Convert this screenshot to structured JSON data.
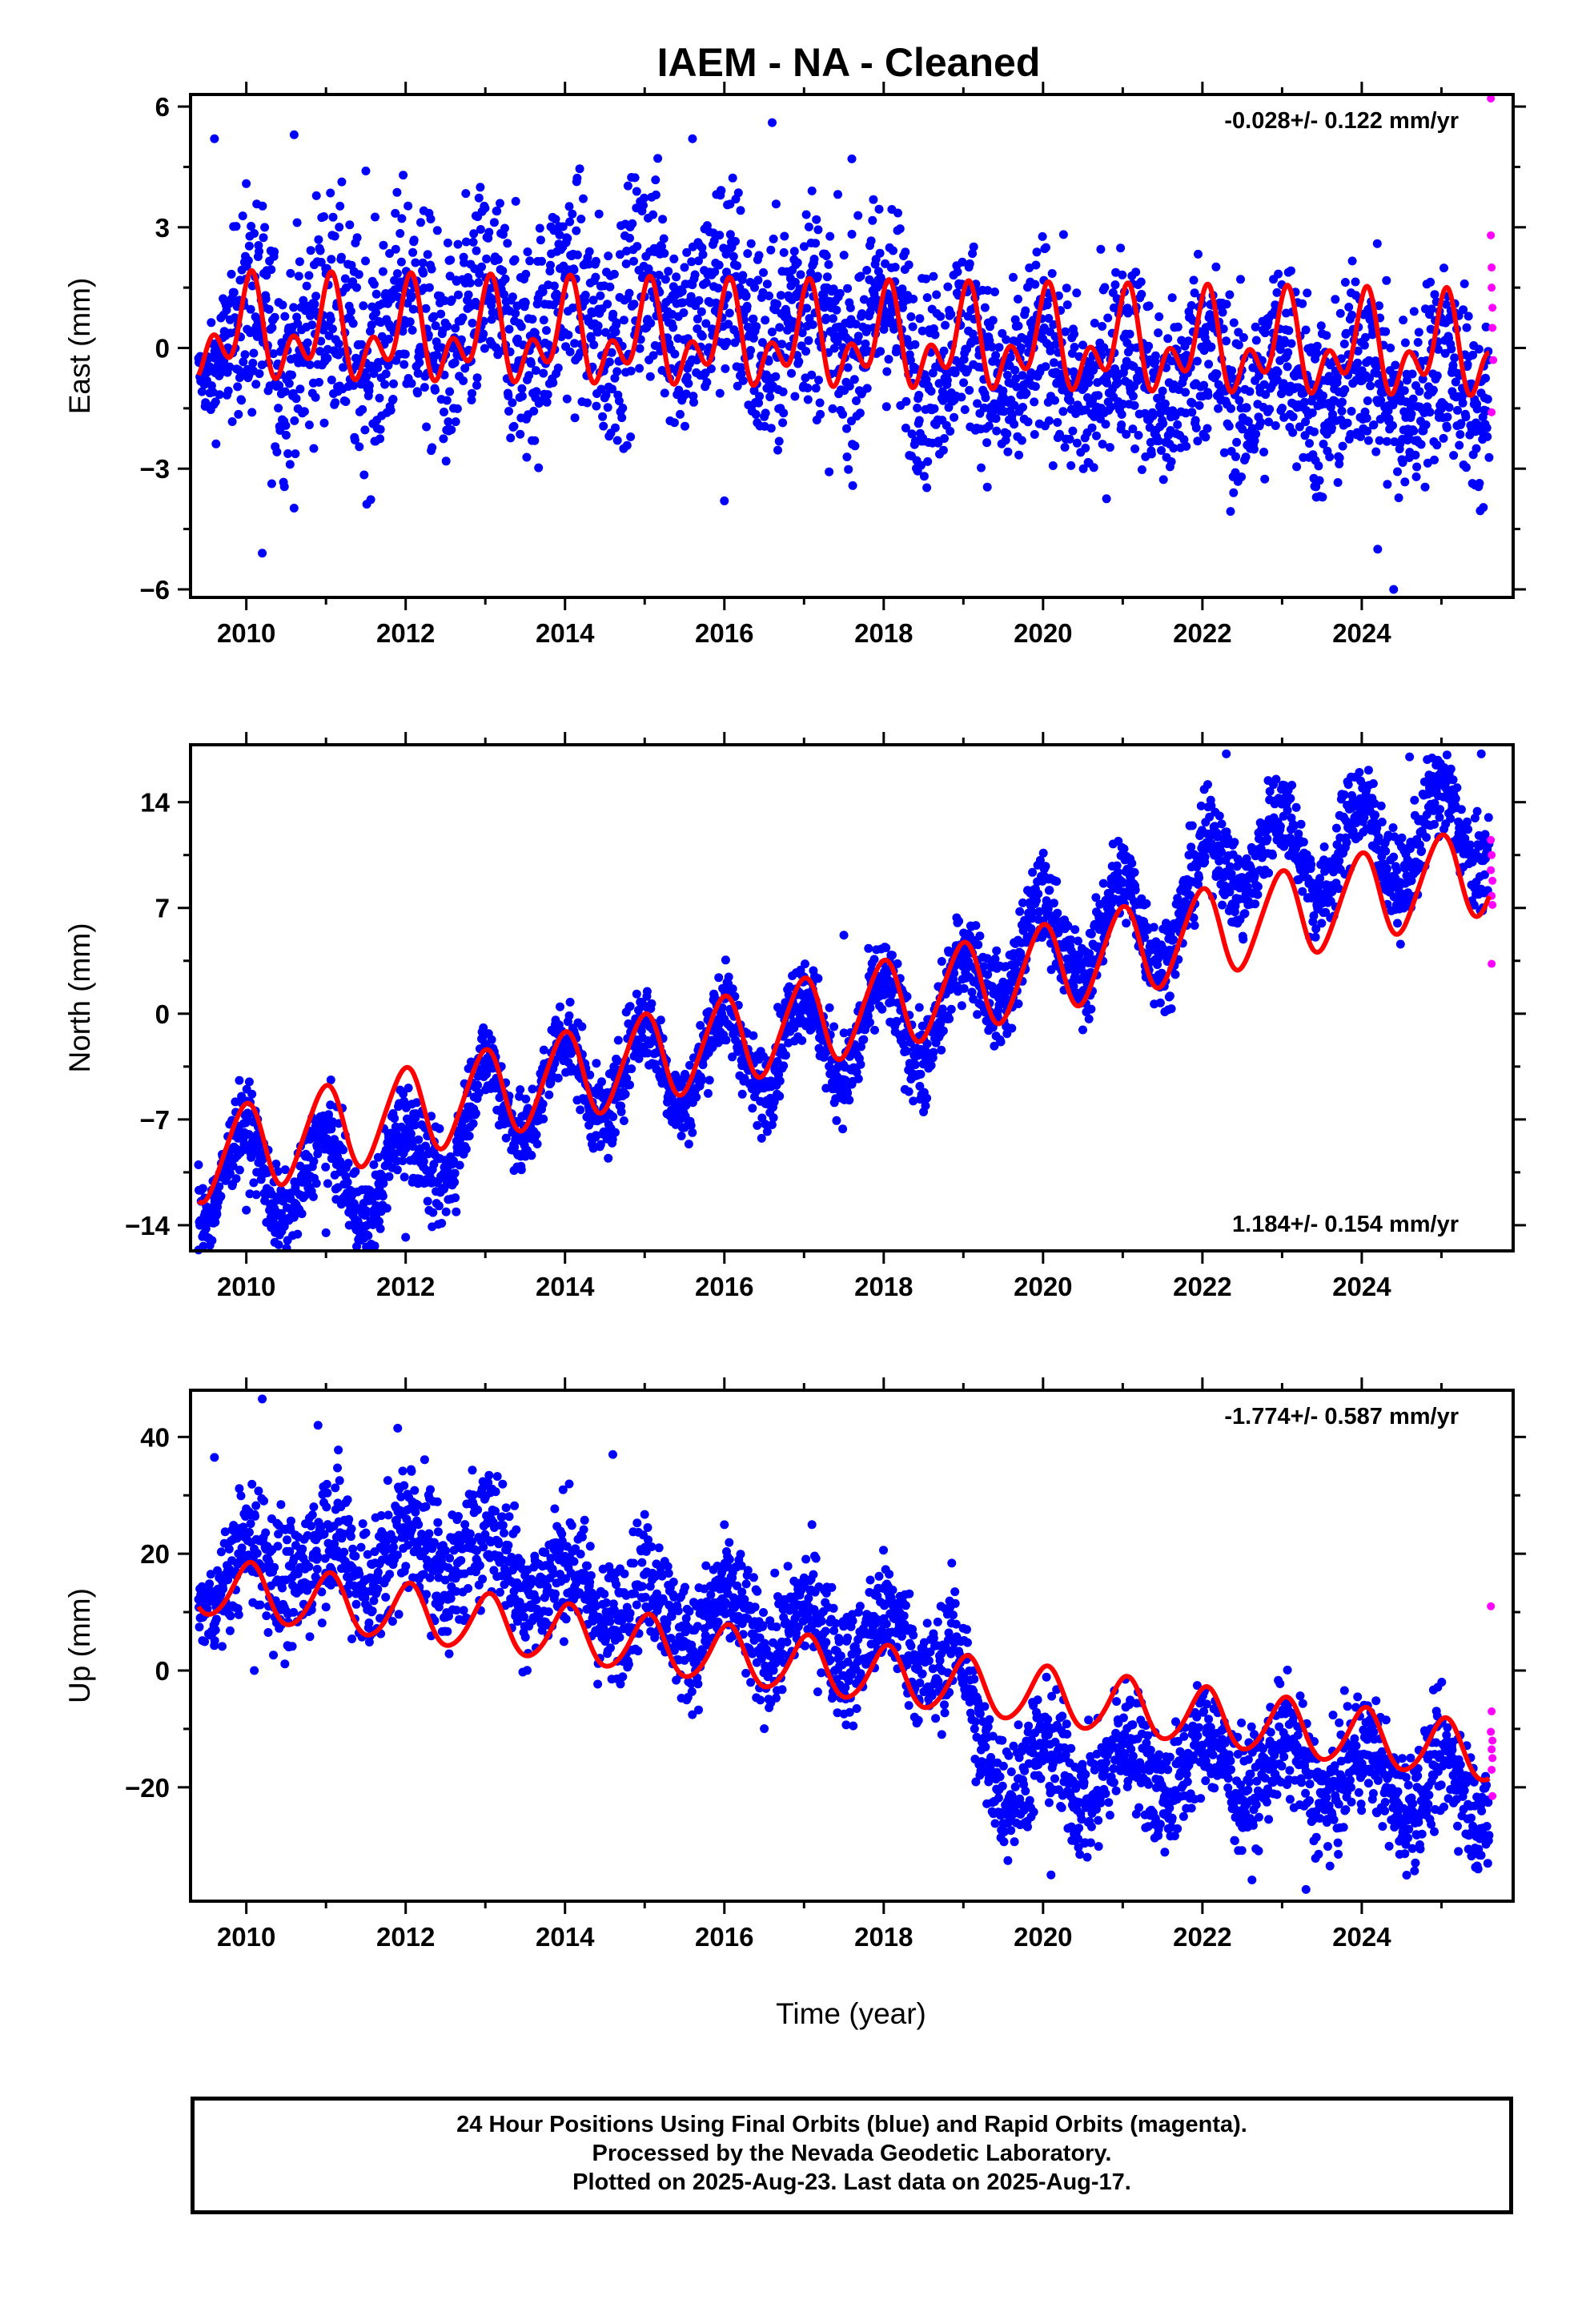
{
  "title": "IAEM  - NA - Cleaned",
  "xlabel": "Time (year)",
  "footer": {
    "line1": "24 Hour Positions Using Final Orbits (blue) and Rapid Orbits (magenta).",
    "line2": "Processed by the Nevada Geodetic Laboratory.",
    "line3": "Plotted on 2025-Aug-23. Last data on 2025-Aug-17."
  },
  "colors": {
    "final_orbits": "#0000ff",
    "rapid_orbits": "#ff00ff",
    "model": "#ff0000",
    "frame": "#000000"
  },
  "chart_data": [
    {
      "type": "scatter",
      "name": "east",
      "ylabel": "East (mm)",
      "rate": "-0.028+/- 0.122 mm/yr",
      "rate_position": "top-right",
      "xlim": [
        2009.3,
        2025.9
      ],
      "ylim": [
        -6.2,
        6.3
      ],
      "x_ticks": [
        2010,
        2012,
        2014,
        2016,
        2018,
        2020,
        2022,
        2024
      ],
      "y_ticks": [
        6,
        3,
        0,
        -3,
        -6
      ],
      "y_tick_labels": [
        "6",
        "3",
        "0",
        "−3",
        "−6"
      ],
      "grid": false,
      "model": {
        "start": 2009.4,
        "end": 2025.6,
        "offset": 0.15,
        "slope": -0.028,
        "ref_year": 2017.5,
        "annual_amp": 0.85,
        "annual_phase": 1.4,
        "semi_amp": 0.75,
        "semi_phase": 0.6
      },
      "scatter_profile": {
        "keys": [
          [
            2009.4,
            0.0,
            0.3
          ],
          [
            2010.0,
            0.3,
            1.4
          ],
          [
            2012.0,
            0.4,
            1.4
          ],
          [
            2014.0,
            0.8,
            1.4
          ],
          [
            2015.5,
            1.2,
            1.4
          ],
          [
            2016.5,
            0.6,
            1.4
          ],
          [
            2018.0,
            0.6,
            1.3
          ],
          [
            2018.8,
            -0.3,
            1.2
          ],
          [
            2020.0,
            -0.6,
            1.2
          ],
          [
            2022.0,
            -0.7,
            1.2
          ],
          [
            2024.0,
            -0.9,
            1.2
          ],
          [
            2025.6,
            -1.0,
            1.2
          ]
        ],
        "season_amp": 0.8,
        "season_phase": 1.4
      },
      "highlight_points": [
        [
          2009.6,
          5.2
        ],
        [
          2010.6,
          5.3
        ],
        [
          2011.5,
          4.4
        ],
        [
          2015.6,
          5.2
        ],
        [
          2016.6,
          5.6
        ],
        [
          2017.6,
          4.7
        ],
        [
          2010.2,
          -5.1
        ],
        [
          2024.4,
          -6.0
        ],
        [
          2024.2,
          -5.0
        ],
        [
          2016.0,
          -3.8
        ]
      ],
      "rapid_points": [
        [
          2025.62,
          6.2
        ],
        [
          2025.62,
          2.8
        ],
        [
          2025.63,
          2.0
        ],
        [
          2025.63,
          1.5
        ],
        [
          2025.64,
          1.0
        ],
        [
          2025.64,
          0.5
        ],
        [
          2025.65,
          -0.3
        ],
        [
          2025.63,
          -1.6
        ]
      ]
    },
    {
      "type": "scatter",
      "name": "north",
      "ylabel": "North (mm)",
      "rate": "1.184+/- 0.154 mm/yr",
      "rate_position": "bottom-right",
      "xlim": [
        2009.3,
        2025.9
      ],
      "ylim": [
        -15.7,
        17.8
      ],
      "x_ticks": [
        2010,
        2012,
        2014,
        2016,
        2018,
        2020,
        2022,
        2024
      ],
      "y_ticks": [
        14,
        7,
        0,
        -7,
        -14
      ],
      "y_tick_labels": [
        "14",
        "7",
        "0",
        "−7",
        "−14"
      ],
      "grid": false,
      "model": {
        "start": 2009.4,
        "end": 2025.6,
        "offset": 0.0,
        "slope": 1.184,
        "ref_year": 2017.5,
        "annual_amp": 2.9,
        "annual_phase": 1.7,
        "semi_amp": 0.3,
        "semi_phase": 0.2
      },
      "scatter_profile": {
        "keys": [
          [
            2009.4,
            -10.5,
            1.2
          ],
          [
            2010.0,
            -10.5,
            1.4
          ],
          [
            2011.0,
            -11.0,
            1.4
          ],
          [
            2012.0,
            -10.5,
            1.5
          ],
          [
            2013.0,
            -6.0,
            1.4
          ],
          [
            2014.0,
            -4.5,
            1.4
          ],
          [
            2015.0,
            -3.5,
            1.4
          ],
          [
            2016.0,
            -2.5,
            1.4
          ],
          [
            2017.0,
            -1.5,
            1.4
          ],
          [
            2018.0,
            -1.0,
            1.5
          ],
          [
            2018.9,
            0.5,
            1.4
          ],
          [
            2019.5,
            4.0,
            1.5
          ],
          [
            2020.0,
            4.5,
            1.5
          ],
          [
            2021.0,
            6.0,
            1.5
          ],
          [
            2021.9,
            6.5,
            1.5
          ],
          [
            2022.2,
            11.0,
            1.5
          ],
          [
            2023.0,
            10.5,
            1.5
          ],
          [
            2024.0,
            11.0,
            1.5
          ],
          [
            2025.6,
            12.5,
            1.5
          ]
        ],
        "season_amp": 3.0,
        "season_phase": 1.7
      },
      "highlight_points": [
        [
          2009.4,
          -10.0
        ],
        [
          2010.0,
          -13.0
        ],
        [
          2012.0,
          -14.8
        ],
        [
          2011.0,
          -14.5
        ],
        [
          2022.3,
          17.2
        ],
        [
          2024.6,
          17.0
        ],
        [
          2025.5,
          17.2
        ],
        [
          2017.5,
          5.2
        ],
        [
          2018.5,
          -6.5
        ]
      ],
      "rapid_points": [
        [
          2025.62,
          11.5
        ],
        [
          2025.63,
          10.5
        ],
        [
          2025.62,
          9.5
        ],
        [
          2025.64,
          8.8
        ],
        [
          2025.63,
          7.8
        ],
        [
          2025.64,
          7.2
        ],
        [
          2025.63,
          3.3
        ]
      ]
    },
    {
      "type": "scatter",
      "name": "up",
      "ylabel": "Up (mm)",
      "rate": "-1.774+/- 0.587 mm/yr",
      "rate_position": "top-right",
      "xlim": [
        2009.3,
        2025.9
      ],
      "ylim": [
        -39.5,
        48
      ],
      "x_ticks": [
        2010,
        2012,
        2014,
        2016,
        2018,
        2020,
        2022,
        2024
      ],
      "y_ticks": [
        40,
        20,
        0,
        -20
      ],
      "y_tick_labels": [
        "40",
        "20",
        "0",
        "−20"
      ],
      "grid": false,
      "model": {
        "start": 2009.4,
        "end": 2025.6,
        "offset": 0.0,
        "slope": -1.774,
        "ref_year": 2017.5,
        "annual_amp": 4.9,
        "annual_phase": 1.3,
        "semi_amp": 0.5,
        "semi_phase": 0.4
      },
      "scatter_profile": {
        "keys": [
          [
            2009.4,
            15.0,
            3.0
          ],
          [
            2010.2,
            18.0,
            6.0
          ],
          [
            2012.0,
            20.0,
            6.0
          ],
          [
            2013.0,
            21.0,
            6.0
          ],
          [
            2014.0,
            14.0,
            5.5
          ],
          [
            2016.0,
            8.0,
            5.0
          ],
          [
            2018.0,
            5.0,
            5.0
          ],
          [
            2018.9,
            3.0,
            5.0
          ],
          [
            2019.2,
            -15.0,
            5.0
          ],
          [
            2020.0,
            -18.0,
            5.5
          ],
          [
            2022.0,
            -16.0,
            5.0
          ],
          [
            2024.0,
            -18.0,
            5.0
          ],
          [
            2025.6,
            -21.0,
            5.0
          ]
        ],
        "season_amp": 5.0,
        "season_phase": 1.3
      },
      "highlight_points": [
        [
          2010.2,
          46.5
        ],
        [
          2010.9,
          42.0
        ],
        [
          2011.9,
          41.5
        ],
        [
          2009.6,
          36.5
        ],
        [
          2014.6,
          37.0
        ],
        [
          2023.3,
          -37.5
        ],
        [
          2020.1,
          -35.0
        ],
        [
          2010.1,
          0.0
        ]
      ],
      "rapid_points": [
        [
          2025.62,
          11.0
        ],
        [
          2025.63,
          -7.0
        ],
        [
          2025.62,
          -10.5
        ],
        [
          2025.64,
          -12.0
        ],
        [
          2025.63,
          -13.5
        ],
        [
          2025.64,
          -15.0
        ],
        [
          2025.63,
          -17.0
        ],
        [
          2025.64,
          -21.5
        ]
      ]
    }
  ]
}
